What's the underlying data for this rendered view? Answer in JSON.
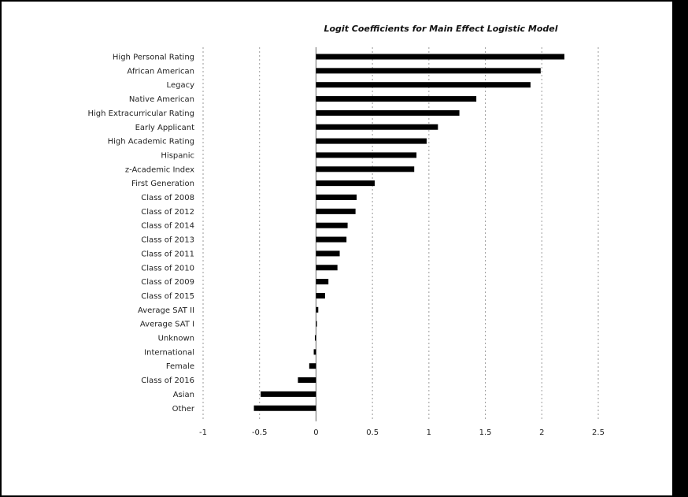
{
  "chart_data": {
    "type": "bar",
    "orientation": "horizontal",
    "title": "Logit Coefficients for Main Effect Logistic Model",
    "xlabel": "",
    "ylabel": "",
    "xlim": [
      -1,
      2.5
    ],
    "xticks": [
      -1,
      -0.5,
      0,
      0.5,
      1,
      1.5,
      2,
      2.5
    ],
    "xtick_labels": [
      "-1",
      "-0.5",
      "0",
      "0.5",
      "1",
      "1.5",
      "2",
      "2.5"
    ],
    "grid": "vertical dashed",
    "legend": "none",
    "bar_color": "#000000",
    "categories": [
      "High Personal Rating",
      "African American",
      "Legacy",
      "Native American",
      "High Extracurricular Rating",
      "Early Applicant",
      "High Academic Rating",
      "Hispanic",
      "z-Academic Index",
      "First Generation",
      "Class of 2008",
      "Class of 2012",
      "Class of 2014",
      "Class of 2013",
      "Class of 2011",
      "Class of 2010",
      "Class of 2009",
      "Class of 2015",
      "Average SAT II",
      "Average SAT I",
      "Unknown",
      "International",
      "Female",
      "Class of 2016",
      "Asian",
      "Other"
    ],
    "values": [
      2.2,
      1.99,
      1.9,
      1.42,
      1.27,
      1.08,
      0.98,
      0.89,
      0.87,
      0.52,
      0.36,
      0.35,
      0.28,
      0.27,
      0.21,
      0.19,
      0.11,
      0.08,
      0.02,
      0.0,
      -0.01,
      -0.02,
      -0.06,
      -0.16,
      -0.49,
      -0.55
    ]
  }
}
